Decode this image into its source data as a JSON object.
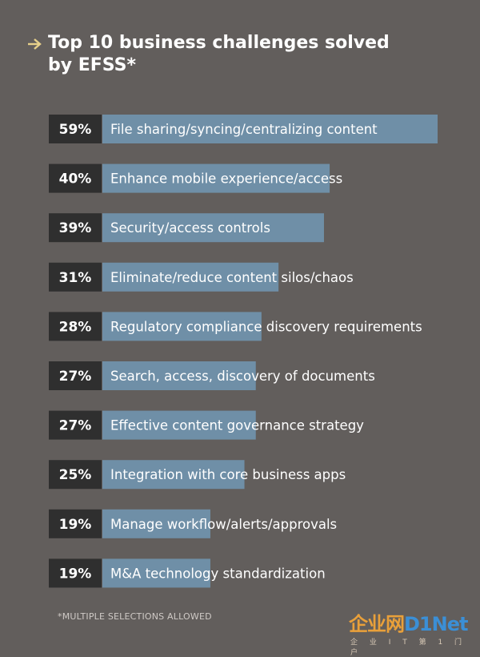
{
  "title": "Top 10 business challenges solved\nby EFSS*",
  "footnote": "*MULTIPLE SELECTIONS ALLOWED",
  "watermark": {
    "main": "企业网",
    "brand": "D1Net",
    "sub": "企 业 I T 第 1 门 户"
  },
  "colors": {
    "background": "#625e5c",
    "bar": "#6f8fa7",
    "pct_box": "#2f2f2f",
    "arrow": "#e7d08a"
  },
  "chart_data": {
    "type": "bar",
    "orientation": "horizontal",
    "title": "Top 10 business challenges solved by EFSS*",
    "unit": "%",
    "xlim": [
      0,
      59
    ],
    "categories": [
      "File sharing/syncing/centralizing content",
      "Enhance mobile experience/access",
      "Security/access controls",
      "Eliminate/reduce content silos/chaos",
      "Regulatory compliance discovery requirements",
      "Search, access, discovery of documents",
      "Effective content governance strategy",
      "Integration with core business apps",
      "Manage workflow/alerts/approvals",
      "M&A technology standardization"
    ],
    "values": [
      59,
      40,
      39,
      31,
      28,
      27,
      27,
      25,
      19,
      19
    ],
    "value_labels": [
      "59%",
      "40%",
      "39%",
      "31%",
      "28%",
      "27%",
      "27%",
      "25%",
      "19%",
      "19%"
    ]
  }
}
